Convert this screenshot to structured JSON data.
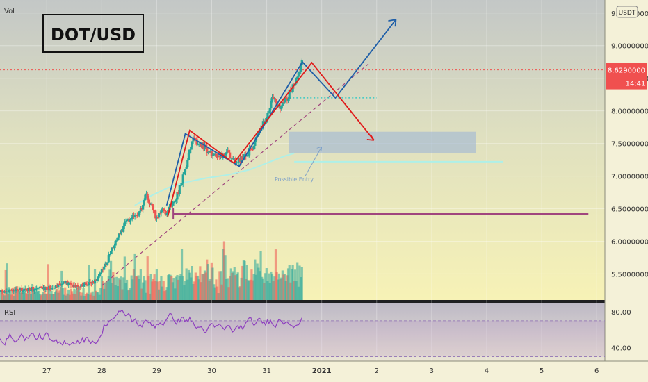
{
  "chart_data": {
    "type": "candlestick",
    "title": "DOT/USD",
    "volume_label": "Vol",
    "currency_badge": "USDT",
    "price_axis": {
      "ticks": [
        9.5,
        9.0,
        8.5,
        8.0,
        7.5,
        7.0,
        6.5,
        6.0,
        5.5
      ],
      "tick_labels": [
        "9.5000000",
        "9.0000000",
        "8.5000000",
        "8.0000000",
        "7.5000000",
        "7.0000000",
        "6.5000000",
        "6.0000000",
        "5.5000000"
      ],
      "range": [
        5.1,
        9.7
      ]
    },
    "current_price": {
      "value": 8.629,
      "label": "8.6290000",
      "countdown": "14:41"
    },
    "time_axis": {
      "labels": [
        "27",
        "28",
        "29",
        "30",
        "31",
        "2021",
        "2",
        "3",
        "4",
        "5",
        "6"
      ],
      "positions_days": [
        0,
        1,
        2,
        3,
        4,
        5,
        6,
        7,
        8,
        9,
        10
      ],
      "range_days": [
        -0.85,
        10.15
      ]
    },
    "annotations": {
      "possible_entry_text": "Possible Entry",
      "support_level": 6.42,
      "entry_zone": [
        7.35,
        7.68
      ]
    },
    "rsi": {
      "label": "RSI",
      "ticks": [
        80,
        40
      ],
      "tick_labels": [
        "80.00",
        "40.00"
      ],
      "band": [
        30,
        70
      ],
      "range": [
        25,
        90
      ]
    },
    "colors": {
      "up": "#26a69a",
      "down": "#ef5350",
      "blue_path": "#1f5fa8",
      "red_path": "#e01b1b",
      "support": "#a0457e",
      "rsi_line": "#8e3fbf",
      "price_badge": "#f0504f"
    }
  }
}
